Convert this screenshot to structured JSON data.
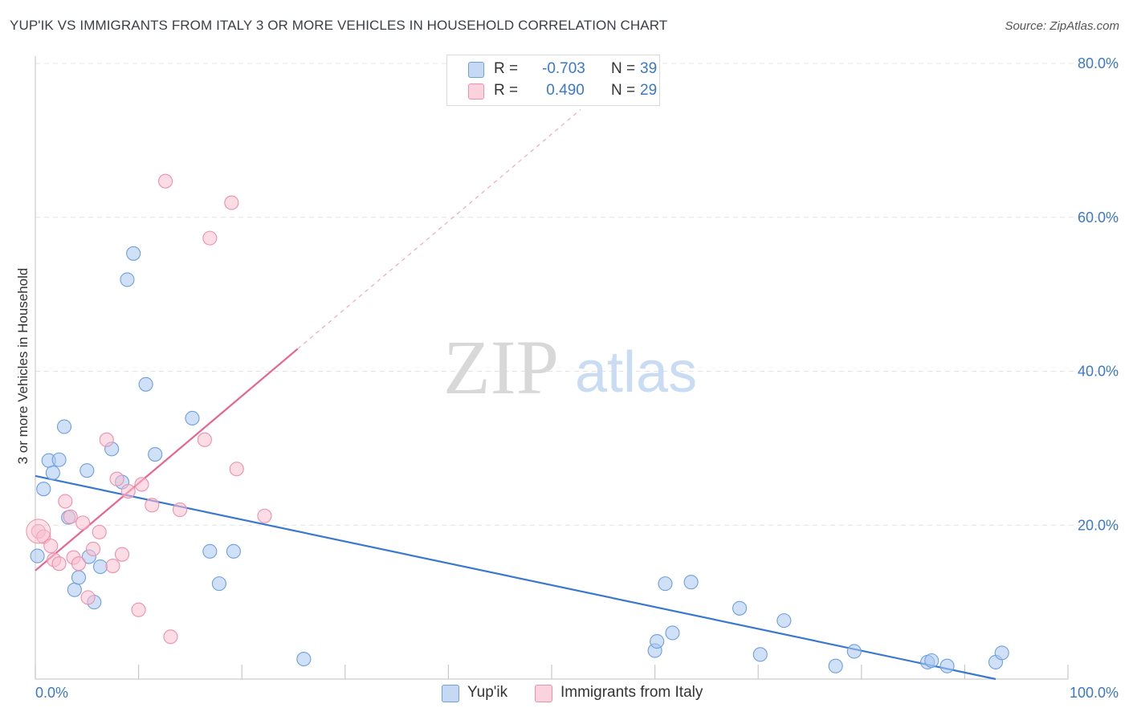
{
  "title": "YUP'IK VS IMMIGRANTS FROM ITALY 3 OR MORE VEHICLES IN HOUSEHOLD CORRELATION CHART",
  "source": "Source: ZipAtlas.com",
  "watermark": {
    "zip": "ZIP",
    "atlas": "atlas"
  },
  "legend": {
    "r_label": "R =",
    "n_label": "N =",
    "rows": [
      {
        "r": "-0.703",
        "n": "39",
        "color": "#a9c8f0",
        "border": "#6d9fe0"
      },
      {
        "r": " 0.490",
        "n": "29",
        "color": "#f9c0d0",
        "border": "#ef8fac"
      }
    ]
  },
  "colors": {
    "blue_line": "#3a78d0",
    "pink_line": "#e8648f",
    "tick_text": "#3b78c9",
    "grid": "#e4e4e4"
  },
  "chart_data": {
    "type": "scatter",
    "title": "YUP'IK VS IMMIGRANTS FROM ITALY 3 OR MORE VEHICLES IN HOUSEHOLD CORRELATION CHART",
    "xlabel": "",
    "ylabel": "3 or more Vehicles in Household",
    "xlim": [
      0,
      100
    ],
    "ylim": [
      0,
      80
    ],
    "x_tick_labels": [
      "0.0%",
      "100.0%"
    ],
    "y_ticks": [
      20,
      40,
      60,
      80
    ],
    "y_tick_labels": [
      "20.0%",
      "40.0%",
      "60.0%",
      "80.0%"
    ],
    "grid": true,
    "legend_position": "top-center",
    "series": [
      {
        "name": "Yup'ik",
        "color": "#a9c8f0",
        "stroke": "#6d9fe0",
        "points": [
          [
            0.2,
            16.0
          ],
          [
            0.8,
            24.7
          ],
          [
            1.3,
            28.4
          ],
          [
            1.7,
            26.8
          ],
          [
            2.3,
            28.5
          ],
          [
            2.8,
            32.8
          ],
          [
            3.2,
            21.0
          ],
          [
            3.8,
            11.6
          ],
          [
            4.2,
            13.2
          ],
          [
            5.0,
            27.1
          ],
          [
            5.2,
            15.9
          ],
          [
            5.7,
            10.0
          ],
          [
            6.3,
            14.6
          ],
          [
            7.4,
            29.9
          ],
          [
            8.4,
            25.6
          ],
          [
            8.9,
            51.9
          ],
          [
            9.5,
            55.3
          ],
          [
            10.7,
            38.3
          ],
          [
            11.6,
            29.2
          ],
          [
            15.2,
            33.9
          ],
          [
            16.9,
            16.6
          ],
          [
            17.8,
            12.4
          ],
          [
            19.2,
            16.6
          ],
          [
            26.0,
            2.6
          ],
          [
            60.0,
            3.7
          ],
          [
            60.2,
            4.9
          ],
          [
            61.0,
            12.4
          ],
          [
            61.7,
            6.0
          ],
          [
            63.5,
            12.6
          ],
          [
            68.2,
            9.2
          ],
          [
            70.2,
            3.2
          ],
          [
            72.5,
            7.6
          ],
          [
            77.5,
            1.7
          ],
          [
            79.3,
            3.6
          ],
          [
            86.4,
            2.2
          ],
          [
            86.8,
            2.4
          ],
          [
            88.3,
            1.7
          ],
          [
            93.0,
            2.2
          ],
          [
            93.6,
            3.4
          ]
        ]
      },
      {
        "name": "Immigrants from Italy",
        "color": "#f9c0d0",
        "stroke": "#ef8fac",
        "points": [
          [
            0.3,
            19.2
          ],
          [
            0.8,
            18.5
          ],
          [
            1.5,
            17.3
          ],
          [
            1.8,
            15.5
          ],
          [
            2.3,
            15.0
          ],
          [
            2.9,
            23.1
          ],
          [
            3.4,
            21.1
          ],
          [
            3.7,
            15.8
          ],
          [
            4.2,
            15.0
          ],
          [
            4.6,
            20.3
          ],
          [
            5.1,
            10.6
          ],
          [
            5.6,
            16.9
          ],
          [
            6.2,
            19.1
          ],
          [
            6.9,
            31.1
          ],
          [
            7.5,
            14.7
          ],
          [
            7.9,
            26.0
          ],
          [
            8.4,
            16.2
          ],
          [
            9.0,
            24.4
          ],
          [
            10.0,
            9.0
          ],
          [
            10.3,
            25.3
          ],
          [
            11.3,
            22.6
          ],
          [
            12.6,
            64.7
          ],
          [
            13.1,
            5.5
          ],
          [
            14.0,
            22.0
          ],
          [
            16.4,
            31.1
          ],
          [
            16.9,
            57.3
          ],
          [
            19.0,
            61.9
          ],
          [
            19.5,
            27.3
          ],
          [
            22.2,
            21.2
          ]
        ]
      }
    ],
    "trend_lines": [
      {
        "series": "Yup'ik",
        "x": [
          0,
          93
        ],
        "y": [
          26.4,
          0.0
        ]
      },
      {
        "series": "Immigrants from Italy",
        "x": [
          0,
          25.4
        ],
        "y": [
          14.1,
          42.9
        ],
        "dashed_to": [
          52.8,
          74.0
        ]
      }
    ]
  },
  "bottom_legend": [
    {
      "label": "Yup'ik",
      "color": "#a9c8f0",
      "border": "#6d9fe0"
    },
    {
      "label": "Immigrants from Italy",
      "color": "#f9c0d0",
      "border": "#ef8fac"
    }
  ]
}
